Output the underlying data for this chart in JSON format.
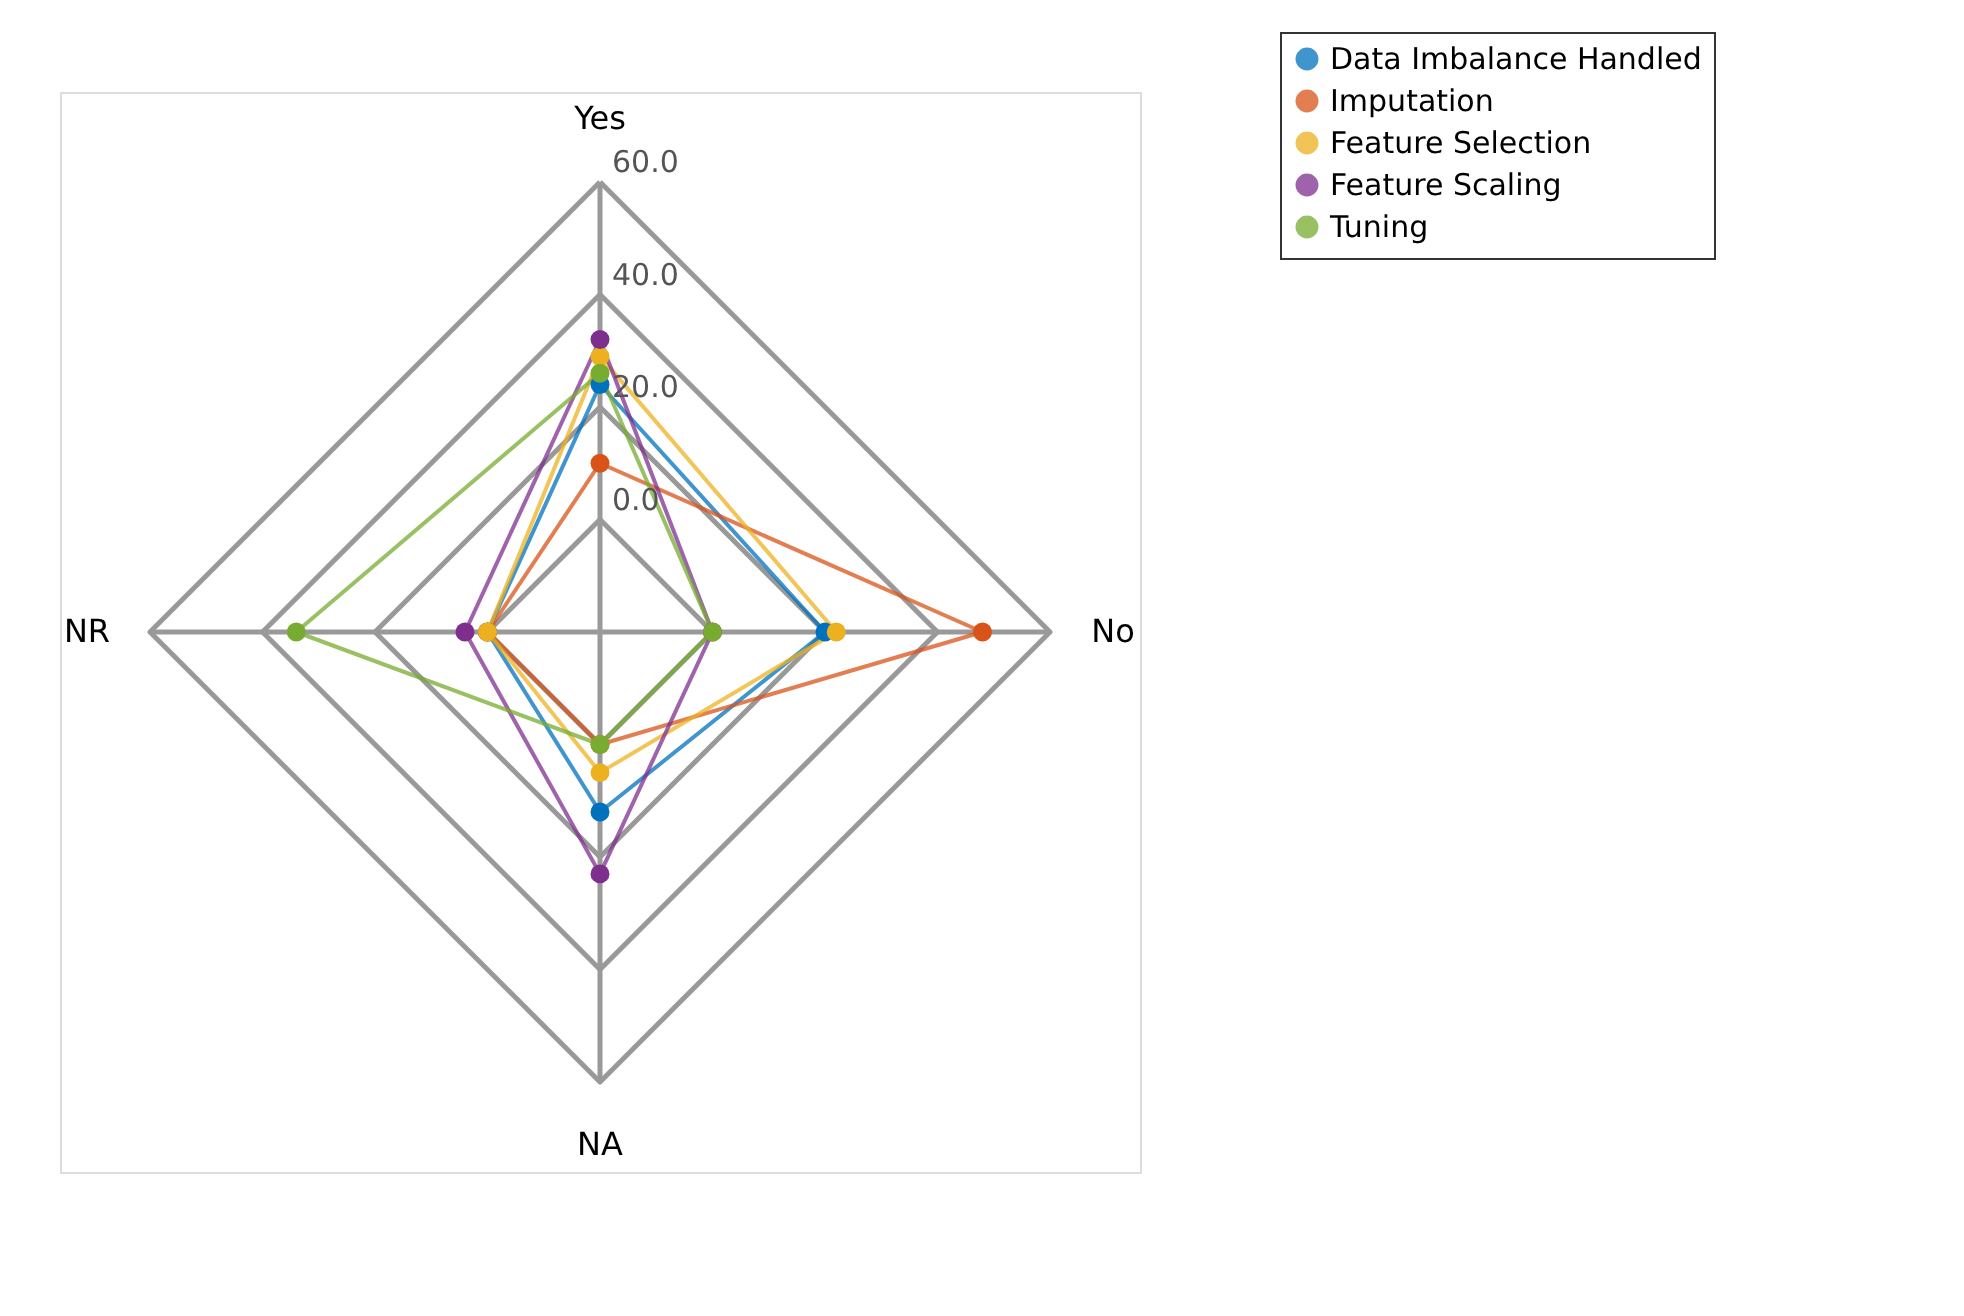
{
  "chart_data": {
    "type": "radar",
    "categories": [
      "Yes",
      "No",
      "NA",
      "NR"
    ],
    "ylim": [
      -20,
      60
    ],
    "yticks": [
      {
        "value": 0,
        "label": "0.0"
      },
      {
        "value": 20,
        "label": "20.0"
      },
      {
        "value": 40,
        "label": "40.0"
      },
      {
        "value": 60,
        "label": "60.0"
      }
    ],
    "grid": true,
    "legend": "top right",
    "marker": "circle",
    "line_style": "solid",
    "series": [
      {
        "name": "Data Imbalance Handled",
        "color": "#0072bd",
        "values": [
          24,
          20,
          12,
          0
        ]
      },
      {
        "name": "Imputation",
        "color": "#d95319",
        "values": [
          10,
          48,
          0,
          0
        ]
      },
      {
        "name": "Feature Selection",
        "color": "#edb120",
        "values": [
          29,
          22,
          5,
          0
        ]
      },
      {
        "name": "Feature Scaling",
        "color": "#7e2f8e",
        "values": [
          32,
          0,
          23,
          4
        ]
      },
      {
        "name": "Tuning",
        "color": "#77ac30",
        "values": [
          26,
          0,
          0,
          34
        ]
      }
    ]
  }
}
